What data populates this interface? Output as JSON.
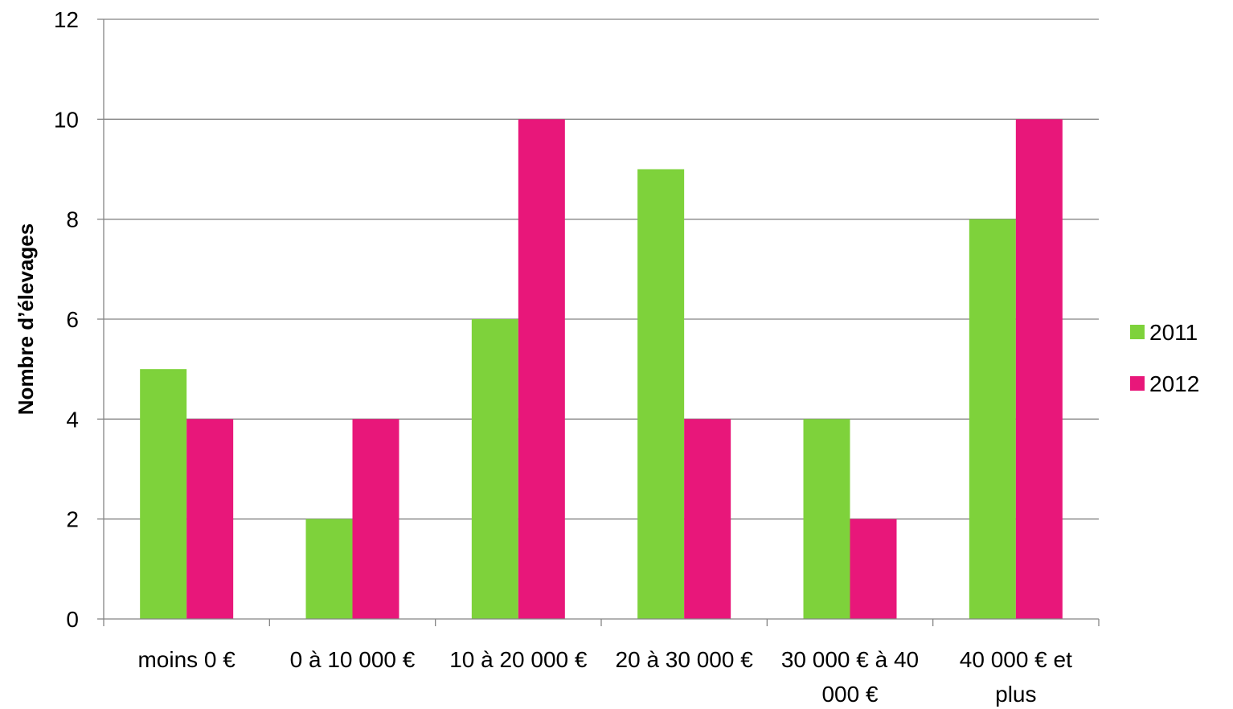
{
  "colors": {
    "series_2011": "#7ed23b",
    "series_2012": "#e8177a",
    "grid": "#858585",
    "axis": "#858585"
  },
  "chart_data": {
    "type": "bar",
    "title": "",
    "xlabel": "",
    "ylabel": "Nombre d’élevages",
    "ylim": [
      0,
      12
    ],
    "yticks": [
      "0",
      "2",
      "4",
      "6",
      "8",
      "10",
      "12"
    ],
    "grid": true,
    "legend": "right",
    "categories": [
      [
        "moins 0 €"
      ],
      [
        "0 à 10 000 €"
      ],
      [
        "10 à 20 000 €"
      ],
      [
        "20 à 30 000 €"
      ],
      [
        "30 000 € à 40",
        "000 €"
      ],
      [
        "40 000 € et",
        "plus"
      ]
    ],
    "series": [
      {
        "name": "2011",
        "values": [
          5,
          2,
          6,
          9,
          4,
          8
        ]
      },
      {
        "name": "2012",
        "values": [
          4,
          4,
          10,
          4,
          2,
          10
        ]
      }
    ]
  }
}
